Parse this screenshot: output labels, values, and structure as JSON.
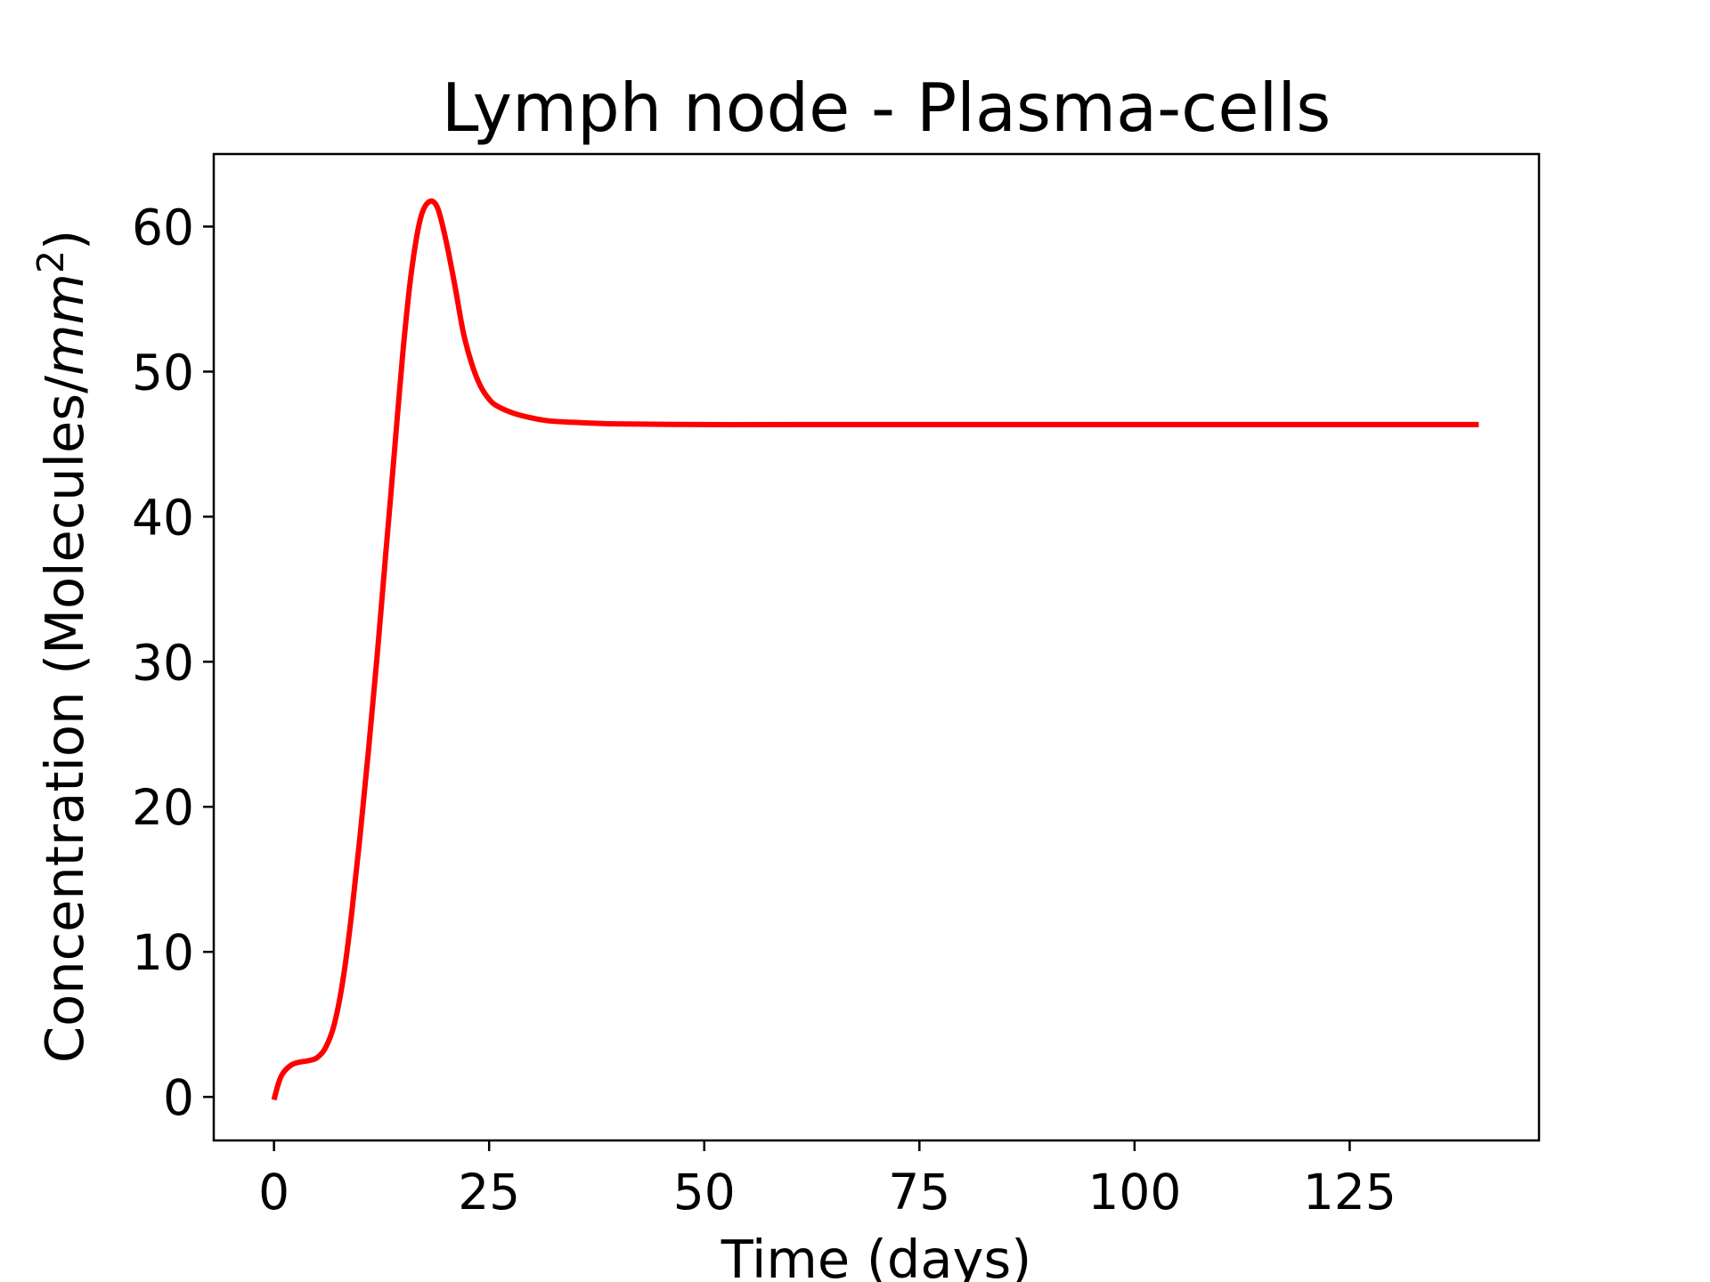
{
  "chart_data": {
    "type": "line",
    "title": "Lymph node - Plasma-cells",
    "xlabel": "Time (days)",
    "ylabel": "Concentration (Molecules/mm²)",
    "ylabel_prefix": "Concentration (Molecules/",
    "ylabel_unit": "mm",
    "ylabel_exp": "2",
    "ylabel_suffix": ")",
    "xlim": [
      -7,
      147
    ],
    "ylim": [
      -3,
      65
    ],
    "xticks": [
      0,
      25,
      50,
      75,
      100,
      125
    ],
    "yticks": [
      0,
      10,
      20,
      30,
      40,
      50,
      60
    ],
    "grid": false,
    "series": [
      {
        "color": "#ff0000",
        "x": [
          0,
          0.5,
          1,
          2,
          3,
          4,
          5,
          6,
          7,
          8,
          9,
          10,
          11,
          12,
          13,
          14,
          15,
          16,
          17,
          18,
          19,
          20,
          21,
          22,
          23,
          24,
          25,
          26,
          28,
          30,
          32,
          35,
          40,
          50,
          60,
          80,
          100,
          120,
          140
        ],
        "y": [
          -0.2,
          0.9,
          1.6,
          2.2,
          2.4,
          2.5,
          2.7,
          3.4,
          5.0,
          8.0,
          12.5,
          18.0,
          24.0,
          30.5,
          37.5,
          44.5,
          51.5,
          57.0,
          60.5,
          61.7,
          61.3,
          59.0,
          56.0,
          52.7,
          50.5,
          49.0,
          48.1,
          47.6,
          47.1,
          46.8,
          46.6,
          46.5,
          46.4,
          46.35,
          46.35,
          46.35,
          46.35,
          46.35,
          46.35
        ]
      }
    ]
  }
}
